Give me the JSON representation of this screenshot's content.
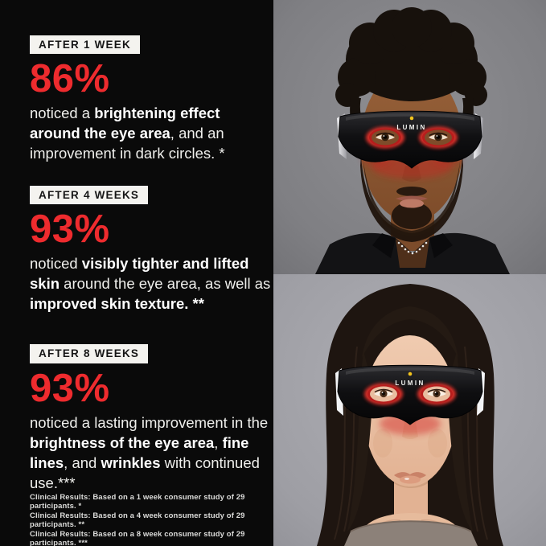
{
  "colors": {
    "panel_bg": "#0a0a0a",
    "stat_red": "#ee2b2e",
    "label_bg": "#f4f3ef",
    "label_text": "#161616",
    "body_text": "#efefec",
    "footnote_text": "#dcdcda",
    "mask_led_red": "#d22220",
    "mask_indicator_yellow": "#f3c41d"
  },
  "stats_panel": {
    "blocks": [
      {
        "label": "AFTER 1 WEEK",
        "stat": "86%",
        "description_segments": [
          {
            "text": "noticed a ",
            "bold": false
          },
          {
            "text": "brightening effect around the eye area",
            "bold": true
          },
          {
            "text": ", and an improvement in dark circles. *",
            "bold": false
          }
        ]
      },
      {
        "label": "AFTER 4 WEEKS",
        "stat": "93%",
        "description_segments": [
          {
            "text": "noticed ",
            "bold": false
          },
          {
            "text": "visibly tighter and lifted skin",
            "bold": true
          },
          {
            "text": " around the eye area, as well as ",
            "bold": false
          },
          {
            "text": "improved skin texture. **",
            "bold": true
          }
        ]
      },
      {
        "label": "AFTER 8 WEEKS",
        "stat": "93%",
        "description_segments": [
          {
            "text": "noticed a lasting improvement in the ",
            "bold": false
          },
          {
            "text": "brightness of the eye area",
            "bold": true
          },
          {
            "text": ", ",
            "bold": false
          },
          {
            "text": "fine lines",
            "bold": true
          },
          {
            "text": ", and ",
            "bold": false
          },
          {
            "text": "wrinkles",
            "bold": true
          },
          {
            "text": " with continued use.***",
            "bold": false
          }
        ]
      }
    ],
    "footnotes": [
      "Clinical Results: Based on a 1 week consumer study of 29 participants. *",
      "Clinical Results: Based on a 4 week consumer study of 29 participants. **",
      "Clinical Results: Based on a 8 week consumer study of 29 participants. ***"
    ]
  },
  "photos": {
    "top_photo": {
      "subject": "man wearing LED light-therapy eye mask",
      "device_label": "LUMIN"
    },
    "bottom_photo": {
      "subject": "woman wearing LED light-therapy eye mask",
      "device_label": "LUMIN"
    }
  }
}
